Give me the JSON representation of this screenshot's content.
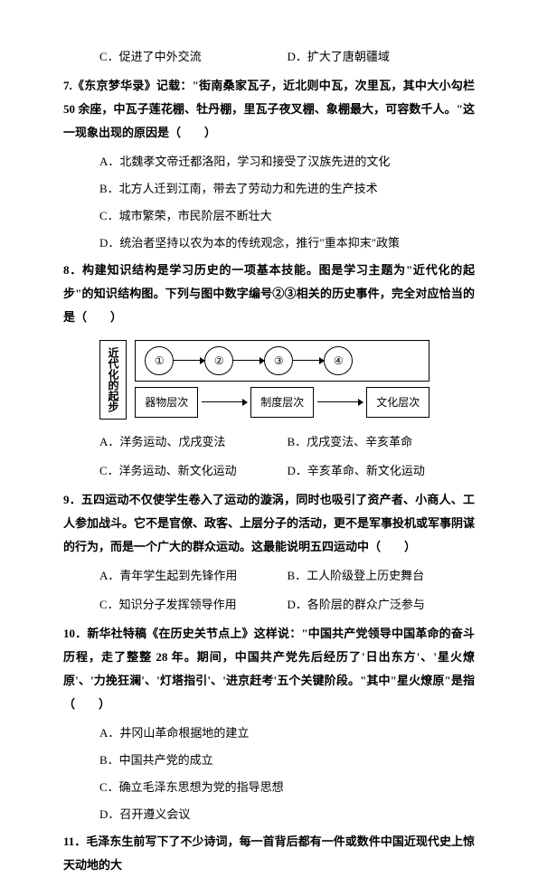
{
  "q6_tail": {
    "c": "C．促进了中外交流",
    "d": "D．扩大了唐朝疆域"
  },
  "q7": {
    "stem": "7.《东京梦华录》记载：\"街南桑家瓦子，近北则中瓦，次里瓦，其中大小勾栏 50 余座，中瓦子莲花棚、牡丹棚，里瓦子夜叉棚、象棚最大，可容数千人。\"这一现象出现的原因是（　　）",
    "a": "A．北魏孝文帝迁都洛阳，学习和接受了汉族先进的文化",
    "b": "B．北方人迁到江南，带去了劳动力和先进的生产技术",
    "c": "C．城市繁荣，市民阶层不断壮大",
    "d": "D．统治者坚持以农为本的传统观念，推行\"重本抑末\"政策"
  },
  "q8": {
    "stem": "8．构建知识结构是学习历史的一项基本技能。图是学习主题为\"近代化的起步\"的知识结构图。下列与图中数字编号②③相关的历史事件，完全对应恰当的是（　　）",
    "diagram": {
      "title": "近代化的起步",
      "circles": [
        "①",
        "②",
        "③",
        "④"
      ],
      "boxes": [
        "器物层次",
        "制度层次",
        "文化层次"
      ]
    },
    "a": "A．洋务运动、戊戌变法",
    "b": "B．戊戌变法、辛亥革命",
    "c": "C．洋务运动、新文化运动",
    "d": "D．辛亥革命、新文化运动"
  },
  "q9": {
    "stem": "9．五四运动不仅使学生卷入了运动的漩涡，同时也吸引了资产者、小商人、工人参加战斗。它不是官僚、政客、上层分子的活动，更不是军事投机或军事阴谋的行为，而是一个广大的群众运动。这最能说明五四运动中（　　）",
    "a": "A．青年学生起到先锋作用",
    "b": "B．工人阶级登上历史舞台",
    "c": "C．知识分子发挥领导作用",
    "d": "D．各阶层的群众广泛参与"
  },
  "q10": {
    "stem": "10．新华社特稿《在历史关节点上》这样说：\"中国共产党领导中国革命的奋斗历程，走了整整 28 年。期间，中国共产党先后经历了'日出东方'、'星火燎原'、'力挽狂澜'、'灯塔指引'、'进京赶考'五个关键阶段。\"其中\"星火燎原\"是指（　　）",
    "a": "A．井冈山革命根据地的建立",
    "b": "B．中国共产党的成立",
    "c": "C．确立毛泽东思想为党的指导思想",
    "d": "D．召开遵义会议"
  },
  "q11": {
    "stem": "11．毛泽东生前写下了不少诗词，每一首背后都有一件或数件中国近现代史上惊天动地的大"
  }
}
